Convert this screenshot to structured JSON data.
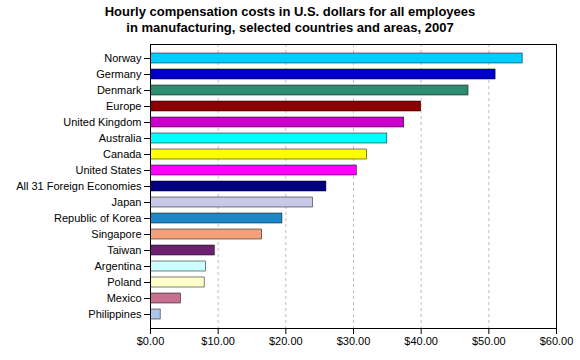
{
  "chart_data": {
    "type": "bar",
    "orientation": "horizontal",
    "title": "Hourly compensation costs in U.S. dollars for all employees\nin manufacturing, selected countries and areas, 2007",
    "categories": [
      "Philippines",
      "Mexico",
      "Poland",
      "Argentina",
      "Taiwan",
      "Singapore",
      "Republic of Korea",
      "Japan",
      "All 31 Foreign Economies",
      "United States",
      "Canada",
      "Australia",
      "United Kingdom",
      "Europe",
      "Denmark",
      "Germany",
      "Norway"
    ],
    "values": [
      1.5,
      4.5,
      8.0,
      8.2,
      9.5,
      16.5,
      19.5,
      24.0,
      26.0,
      30.5,
      32.0,
      35.0,
      37.5,
      40.0,
      47.0,
      51.0,
      55.0
    ],
    "colors": [
      "#aec6e8",
      "#c87090",
      "#ffffcc",
      "#ccffff",
      "#6b2070",
      "#f4a07a",
      "#1e88c7",
      "#c8c8e8",
      "#000080",
      "#ff00ff",
      "#ffff00",
      "#00ffff",
      "#cc00cc",
      "#8b0000",
      "#2e8b70",
      "#0000cc",
      "#00ccff"
    ],
    "xlim": [
      0,
      60
    ],
    "xticks": [
      {
        "value": 0,
        "label": "$0.00"
      },
      {
        "value": 10,
        "label": "$10.00"
      },
      {
        "value": 20,
        "label": "$20.00"
      },
      {
        "value": 30,
        "label": "$30.00"
      },
      {
        "value": 40,
        "label": "$40.00"
      },
      {
        "value": 50,
        "label": "$50.00"
      },
      {
        "value": 60,
        "label": "$60.00"
      }
    ],
    "grid": true
  }
}
